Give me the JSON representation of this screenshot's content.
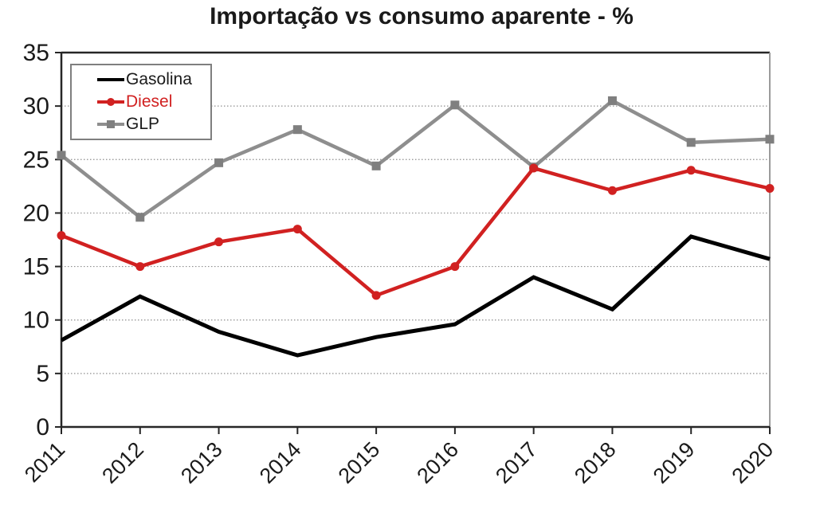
{
  "page": {
    "background": "#ffffff"
  },
  "chart_data": {
    "type": "line",
    "title": "Importação vs consumo aparente - %",
    "xlabel": "",
    "ylabel": "",
    "categories": [
      "2011",
      "2012",
      "2013",
      "2014",
      "2015",
      "2016",
      "2017",
      "2018",
      "2019",
      "2020"
    ],
    "series": [
      {
        "name": "Gasolina",
        "color": "#000000",
        "label_color": "#1a1a1a",
        "marker": "none",
        "values": [
          8.1,
          12.2,
          8.9,
          6.7,
          8.4,
          9.6,
          14.0,
          11.0,
          17.8,
          15.7
        ]
      },
      {
        "name": "Diesel",
        "color": "#d12121",
        "label_color": "#d12121",
        "marker": "circle",
        "values": [
          17.9,
          15.0,
          17.3,
          18.5,
          12.3,
          15.0,
          24.2,
          22.1,
          24.0,
          22.3
        ]
      },
      {
        "name": "GLP",
        "color": "#8e8e8e",
        "label_color": "#1a1a1a",
        "marker": "square",
        "values": [
          25.4,
          19.6,
          24.7,
          27.8,
          24.4,
          30.1,
          24.3,
          30.5,
          26.6,
          26.9
        ]
      }
    ],
    "ylim": [
      0,
      35
    ],
    "yticks": [
      0,
      5,
      10,
      15,
      20,
      25,
      30,
      35
    ],
    "grid": "horizontal-dotted",
    "legend_position": "top-left-inside",
    "colors": {
      "axis": "#262626",
      "right_spine": "#9b9b9b",
      "gridline": "#8f8f8f",
      "tick_label": "#1a1a1a"
    }
  }
}
